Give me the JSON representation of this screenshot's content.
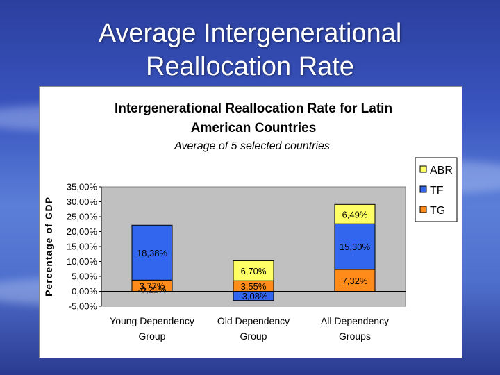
{
  "slide": {
    "title_line1": "Average Intergenerational",
    "title_line2": "Reallocation Rate"
  },
  "colors": {
    "ABR": "#ffff66",
    "TF": "#3366ee",
    "TG": "#ff8c1a",
    "plot_bg": "#c0c0c0"
  },
  "chart_data": {
    "type": "bar",
    "stacked": true,
    "title_line1": "Intergenerational Reallocation Rate for Latin",
    "title_line2": "American Countries",
    "subtitle": "Average of 5 selected countries",
    "ylabel": "Percentage of GDP",
    "ylim": [
      -5,
      35
    ],
    "yticks": [
      "35,00%",
      "30,00%",
      "25,00%",
      "20,00%",
      "15,00%",
      "10,00%",
      "5,00%",
      "0,00%",
      "-5,00%"
    ],
    "ytick_values": [
      35,
      30,
      25,
      20,
      15,
      10,
      5,
      0,
      -5
    ],
    "grid": false,
    "legend_position": "right",
    "categories": [
      [
        "Young Dependency",
        "Group"
      ],
      [
        "Old Dependency",
        "Group"
      ],
      [
        "All Dependency",
        "Groups"
      ]
    ],
    "series": [
      {
        "name": "ABR",
        "values": [
          null,
          6.7,
          6.49
        ],
        "labels": [
          "",
          "6,70%",
          "6,49%"
        ]
      },
      {
        "name": "TF",
        "values": [
          18.38,
          -3.08,
          15.3
        ],
        "labels": [
          "18,38%",
          "-3,08%",
          "15,30%"
        ]
      },
      {
        "name": "TG",
        "values": [
          3.77,
          3.55,
          7.32
        ],
        "labels": [
          "3,77%",
          "3,55%",
          "7,32%"
        ]
      }
    ],
    "extra_labels": [
      {
        "category_index": 0,
        "value": -0.21,
        "label": "-0,21%"
      }
    ]
  }
}
